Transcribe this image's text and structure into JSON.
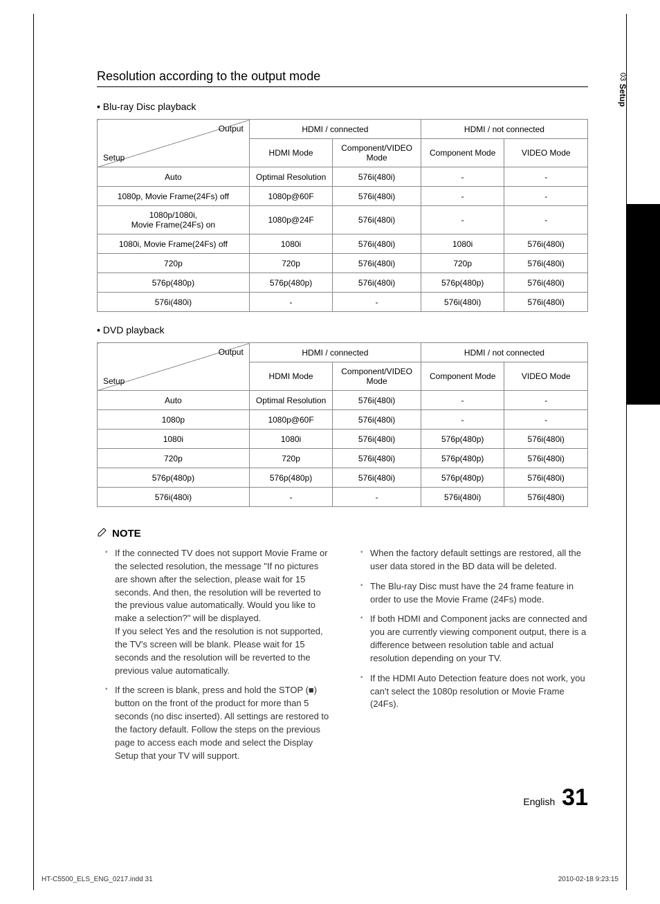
{
  "sidebar": {
    "chapter_num": "03",
    "chapter_title": "Setup"
  },
  "section_title": "Resolution according to the output mode",
  "table_labels": {
    "output": "Output",
    "setup": "Setup",
    "hdmi_conn": "HDMI / connected",
    "hdmi_not": "HDMI / not connected",
    "hdmi_mode": "HDMI Mode",
    "comp_video": "Component/VIDEO Mode",
    "comp_mode": "Component Mode",
    "video_mode": "VIDEO Mode"
  },
  "bluray": {
    "heading": "Blu-ray Disc playback",
    "rows": [
      {
        "setup": "Auto",
        "c1": "Optimal Resolution",
        "c2": "576i(480i)",
        "c3": "-",
        "c4": "-"
      },
      {
        "setup": "1080p, Movie Frame(24Fs) off",
        "c1": "1080p@60F",
        "c2": "576i(480i)",
        "c3": "-",
        "c4": "-"
      },
      {
        "setup": "1080p/1080i,\nMovie Frame(24Fs) on",
        "c1": "1080p@24F",
        "c2": "576i(480i)",
        "c3": "-",
        "c4": "-"
      },
      {
        "setup": "1080i, Movie Frame(24Fs) off",
        "c1": "1080i",
        "c2": "576i(480i)",
        "c3": "1080i",
        "c4": "576i(480i)"
      },
      {
        "setup": "720p",
        "c1": "720p",
        "c2": "576i(480i)",
        "c3": "720p",
        "c4": "576i(480i)"
      },
      {
        "setup": "576p(480p)",
        "c1": "576p(480p)",
        "c2": "576i(480i)",
        "c3": "576p(480p)",
        "c4": "576i(480i)"
      },
      {
        "setup": "576i(480i)",
        "c1": "-",
        "c2": "-",
        "c3": "576i(480i)",
        "c4": "576i(480i)"
      }
    ]
  },
  "dvd": {
    "heading": "DVD playback",
    "rows": [
      {
        "setup": "Auto",
        "c1": "Optimal Resolution",
        "c2": "576i(480i)",
        "c3": "-",
        "c4": "-"
      },
      {
        "setup": "1080p",
        "c1": "1080p@60F",
        "c2": "576i(480i)",
        "c3": "-",
        "c4": "-"
      },
      {
        "setup": "1080i",
        "c1": "1080i",
        "c2": "576i(480i)",
        "c3": "576p(480p)",
        "c4": "576i(480i)"
      },
      {
        "setup": "720p",
        "c1": "720p",
        "c2": "576i(480i)",
        "c3": "576p(480p)",
        "c4": "576i(480i)"
      },
      {
        "setup": "576p(480p)",
        "c1": "576p(480p)",
        "c2": "576i(480i)",
        "c3": "576p(480p)",
        "c4": "576i(480i)"
      },
      {
        "setup": "576i(480i)",
        "c1": "-",
        "c2": "-",
        "c3": "576i(480i)",
        "c4": "576i(480i)"
      }
    ]
  },
  "note": {
    "label": "NOTE",
    "left": [
      "If the connected TV does not support Movie Frame or the selected resolution, the message \"If no pictures are shown after the selection, please wait for 15 seconds. And then, the resolution will be reverted to the previous value automatically. Would you like to make a selection?\" will be displayed.\nIf you select Yes and the resolution is not supported, the TV's screen will be blank. Please wait for 15 seconds and the resolution will be reverted to the previous value automatically.",
      "If the screen is blank, press and hold the STOP (■) button on the front of the product for more than 5 seconds (no disc inserted). All settings are restored to the factory default. Follow the steps on the previous page to access each mode and select the Display Setup that your TV will support."
    ],
    "right": [
      "When the factory default settings are restored, all the user data stored in the BD data will be deleted.",
      "The Blu-ray Disc must have the 24 frame feature in order to use the Movie Frame (24Fs) mode.",
      "If both HDMI and Component jacks are connected and you are currently viewing component output, there is a difference between resolution table and actual resolution depending on your TV.",
      "If the HDMI Auto Detection feature does not work, you can't select the 1080p resolution or Movie Frame (24Fs)."
    ]
  },
  "footer": {
    "lang": "English",
    "page": "31",
    "indd": "HT-C5500_ELS_ENG_0217.indd   31",
    "date": "2010-02-18    9:23:15"
  }
}
